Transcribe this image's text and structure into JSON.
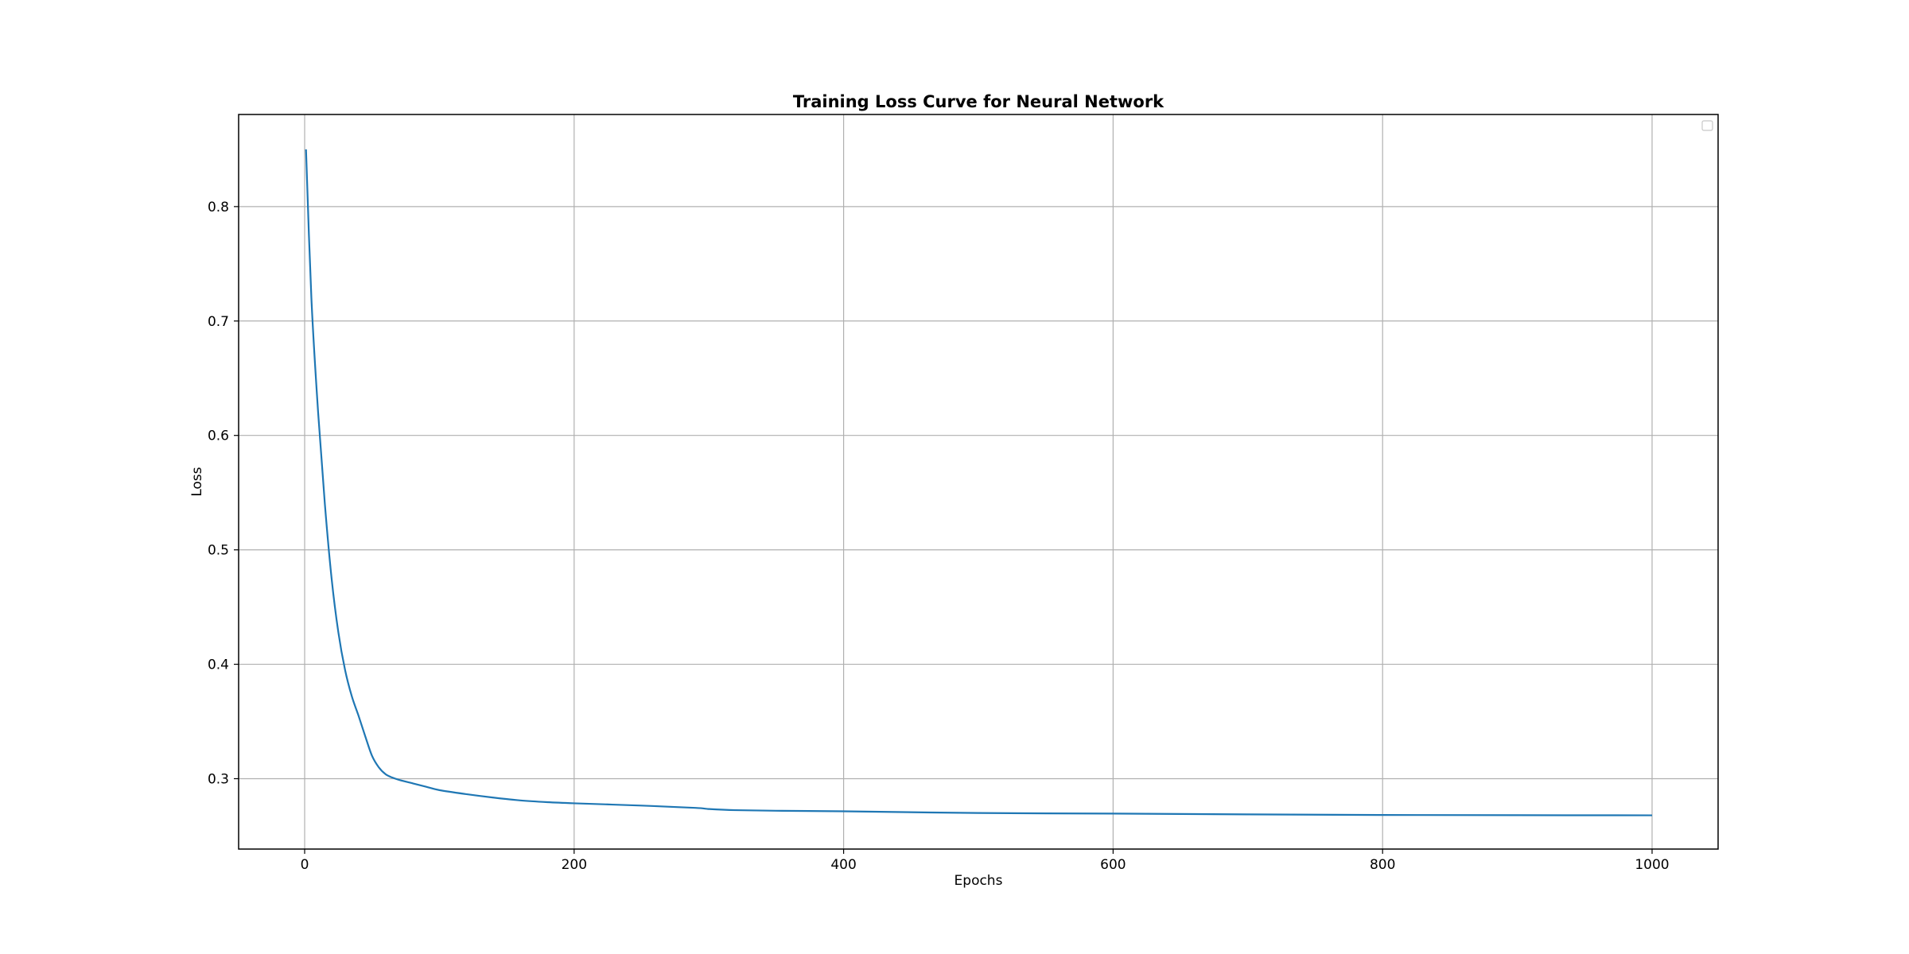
{
  "chart_data": {
    "type": "line",
    "title": "Training Loss Curve for Neural Network",
    "xlabel": "Epochs",
    "ylabel": "Loss",
    "xlim": [
      -49,
      1049
    ],
    "ylim": [
      0.2385,
      0.8805
    ],
    "xticks": [
      0,
      200,
      400,
      600,
      800,
      1000
    ],
    "yticks": [
      0.3,
      0.4,
      0.5,
      0.6,
      0.7,
      0.8
    ],
    "grid": true,
    "legend": "top-right (empty)",
    "colors": {
      "line": "#1f77b4"
    },
    "series": [
      {
        "x": [
          1,
          5,
          10,
          15,
          20,
          25,
          30,
          35,
          40,
          45,
          50,
          55,
          60,
          65,
          70,
          80,
          90,
          100,
          120,
          140,
          160,
          180,
          200,
          250,
          290,
          300,
          320,
          350,
          400,
          500,
          600,
          700,
          800,
          900,
          1000
        ],
        "y": [
          0.85,
          0.72,
          0.62,
          0.54,
          0.475,
          0.428,
          0.395,
          0.372,
          0.355,
          0.337,
          0.32,
          0.31,
          0.304,
          0.301,
          0.299,
          0.296,
          0.293,
          0.29,
          0.2865,
          0.2835,
          0.281,
          0.2795,
          0.2785,
          0.2765,
          0.2745,
          0.2735,
          0.2725,
          0.272,
          0.2715,
          0.27,
          0.2695,
          0.2688,
          0.2683,
          0.2681,
          0.268
        ]
      }
    ]
  }
}
